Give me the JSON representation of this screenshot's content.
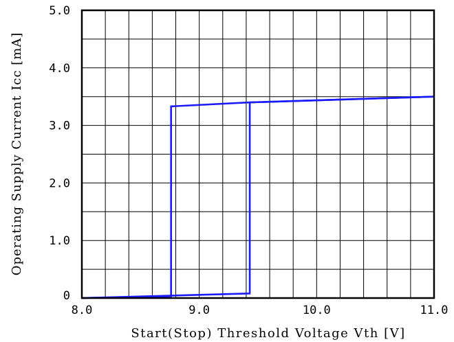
{
  "chart_data": {
    "type": "line",
    "title": "",
    "xlabel": "Start(Stop) Threshold Voltage Vth [V]",
    "ylabel": "Operating Supply Current Icc [mA]",
    "xlim": [
      8.0,
      11.0
    ],
    "ylim": [
      0,
      5.0
    ],
    "x_ticks": [
      8.0,
      9.0,
      10.0,
      11.0
    ],
    "x_tick_labels": [
      "8.0",
      "9.0",
      "10.0",
      "11.0"
    ],
    "y_ticks": [
      0,
      1.0,
      2.0,
      3.0,
      4.0,
      5.0
    ],
    "y_tick_labels": [
      "0",
      "1.0",
      "2.0",
      "3.0",
      "4.0",
      "5.0"
    ],
    "grid": true,
    "grid_x_step": 0.2,
    "grid_y_step": 0.5,
    "line_color": "#1a1aff",
    "series": [
      {
        "name": "",
        "x": [
          8.0,
          8.76,
          8.76,
          9.43,
          11.0
        ],
        "y": [
          0.0,
          0.03,
          3.33,
          3.4,
          3.5
        ]
      },
      {
        "name": "",
        "x": [
          8.0,
          9.43,
          9.43,
          11.0
        ],
        "y": [
          0.0,
          0.08,
          3.4,
          3.5
        ]
      }
    ]
  }
}
